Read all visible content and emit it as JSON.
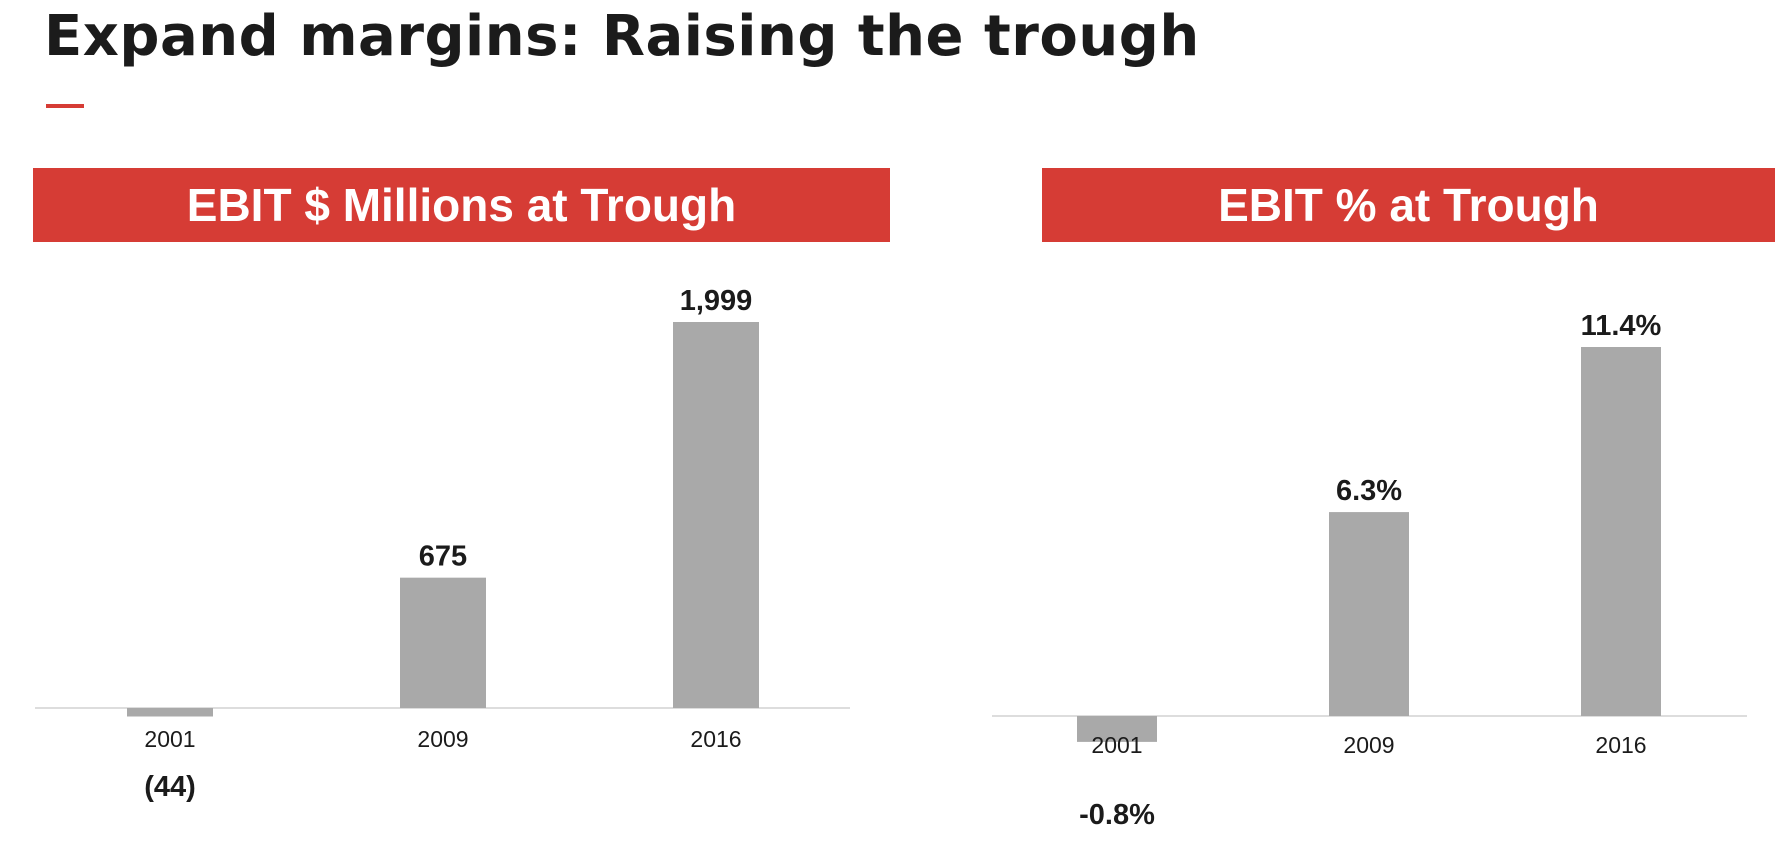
{
  "page": {
    "title": "Expand margins: Raising the trough"
  },
  "colors": {
    "accent": "#d63c35",
    "bar": "#a9a9a9",
    "baseline": "#dddddd",
    "text": "#1b1b1b"
  },
  "chart_data": [
    {
      "type": "bar",
      "title": "EBIT $ Millions at Trough",
      "categories": [
        "2001",
        "2009",
        "2016"
      ],
      "values": [
        -44,
        675,
        1999
      ],
      "data_labels": [
        "(44)",
        "675",
        "1,999"
      ],
      "xlabel": "",
      "ylabel": "",
      "ylim": [
        -44,
        1999
      ],
      "grid": false,
      "legend": "none"
    },
    {
      "type": "bar",
      "title": "EBIT % at Trough",
      "categories": [
        "2001",
        "2009",
        "2016"
      ],
      "values": [
        -0.8,
        6.3,
        11.4
      ],
      "data_labels": [
        "-0.8%",
        "6.3%",
        "11.4%"
      ],
      "xlabel": "",
      "ylabel": "",
      "ylim": [
        -0.8,
        11.4
      ],
      "grid": false,
      "legend": "none"
    }
  ]
}
